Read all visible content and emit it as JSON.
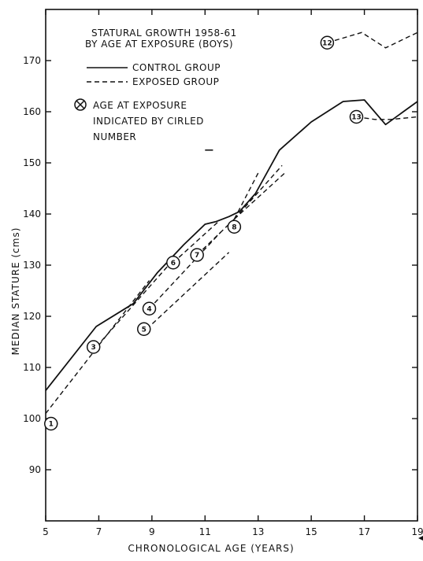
{
  "chart_data": {
    "type": "line",
    "title": "STATURAL GROWTH 1958-61",
    "subtitle": "BY AGE AT EXPOSURE (BOYS)",
    "xlabel": "CHRONOLOGICAL AGE (YEARS)",
    "ylabel": "MEDIAN STATURE (cms)",
    "xlim": [
      5,
      19
    ],
    "ylim": [
      80,
      180
    ],
    "x_ticks": [
      5,
      7,
      9,
      11,
      13,
      15,
      17,
      19
    ],
    "y_ticks": [
      90,
      100,
      110,
      120,
      130,
      140,
      150,
      160,
      170
    ],
    "grid": false,
    "legend": {
      "placement": "top-left",
      "entries": [
        {
          "label": "CONTROL GROUP",
          "style": "solid"
        },
        {
          "label": "EXPOSED GROUP",
          "style": "dashed"
        }
      ],
      "marker_note_lines": [
        "AGE AT EXPOSURE",
        "INDICATED BY CIRLED",
        "NUMBER"
      ]
    },
    "series": [
      {
        "style": "solid",
        "x": [
          5.0,
          6.9,
          8.3,
          9.2,
          10.2,
          11.0,
          11.4,
          11.9,
          12.3,
          12.9,
          13.8,
          15.0,
          16.2,
          17.0,
          17.8,
          19.0
        ],
        "y": [
          105.5,
          118.0,
          122.5,
          128.5,
          134.0,
          138.0,
          138.5,
          139.5,
          140.5,
          144.0,
          152.5,
          158.0,
          162.0,
          162.3,
          157.5,
          162.0
        ]
      },
      {
        "style": "dashed",
        "segments": [
          {
            "marker": "1",
            "x": [
              5.0,
              8.9
            ],
            "y": [
              101.0,
              127.0
            ]
          },
          {
            "marker": "3",
            "x": [
              6.9,
              9.8
            ],
            "y": [
              114.0,
              131.0
            ]
          },
          {
            "marker": "4",
            "x": [
              8.9,
              11.6
            ],
            "y": [
              121.5,
              136.5
            ]
          },
          {
            "marker": "5",
            "x": [
              8.8,
              11.9
            ],
            "y": [
              117.5,
              132.5
            ]
          },
          {
            "marker": "6",
            "x": [
              9.8,
              11.5
            ],
            "y": [
              130.5,
              138.5
            ]
          },
          {
            "marker": "7",
            "x": [
              10.7,
              12.1
            ],
            "y": [
              132.0,
              139.0
            ]
          },
          {
            "marker": "8",
            "x": [
              12.1,
              13.0
            ],
            "y": [
              139.0,
              148.0
            ]
          },
          {
            "marker": "8",
            "x": [
              12.1,
              14.0
            ],
            "y": [
              139.0,
              148.0
            ]
          },
          {
            "marker": "8",
            "x": [
              12.1,
              13.9
            ],
            "y": [
              139.0,
              149.5
            ]
          },
          {
            "marker": "13",
            "x": [
              16.7,
              17.4,
              18.0,
              19.0
            ],
            "y": [
              159.0,
              158.5,
              158.5,
              159.0
            ]
          },
          {
            "marker": "12",
            "x": [
              15.6,
              16.9,
              17.8,
              19.0
            ],
            "y": [
              173.5,
              175.5,
              172.5,
              175.5
            ]
          }
        ]
      }
    ],
    "markers": [
      {
        "label": "1",
        "x": 5.2,
        "y": 99.0
      },
      {
        "label": "3",
        "x": 6.8,
        "y": 114.0
      },
      {
        "label": "4",
        "x": 8.9,
        "y": 121.5
      },
      {
        "label": "5",
        "x": 8.7,
        "y": 117.5
      },
      {
        "label": "6",
        "x": 9.8,
        "y": 130.5
      },
      {
        "label": "7",
        "x": 10.7,
        "y": 132.0
      },
      {
        "label": "8",
        "x": 12.1,
        "y": 137.5
      },
      {
        "label": "12",
        "x": 15.6,
        "y": 173.5
      },
      {
        "label": "13",
        "x": 16.7,
        "y": 159.0
      }
    ],
    "stray_dash": {
      "x": [
        11.0,
        11.3
      ],
      "y": [
        152.5,
        152.5
      ]
    }
  }
}
